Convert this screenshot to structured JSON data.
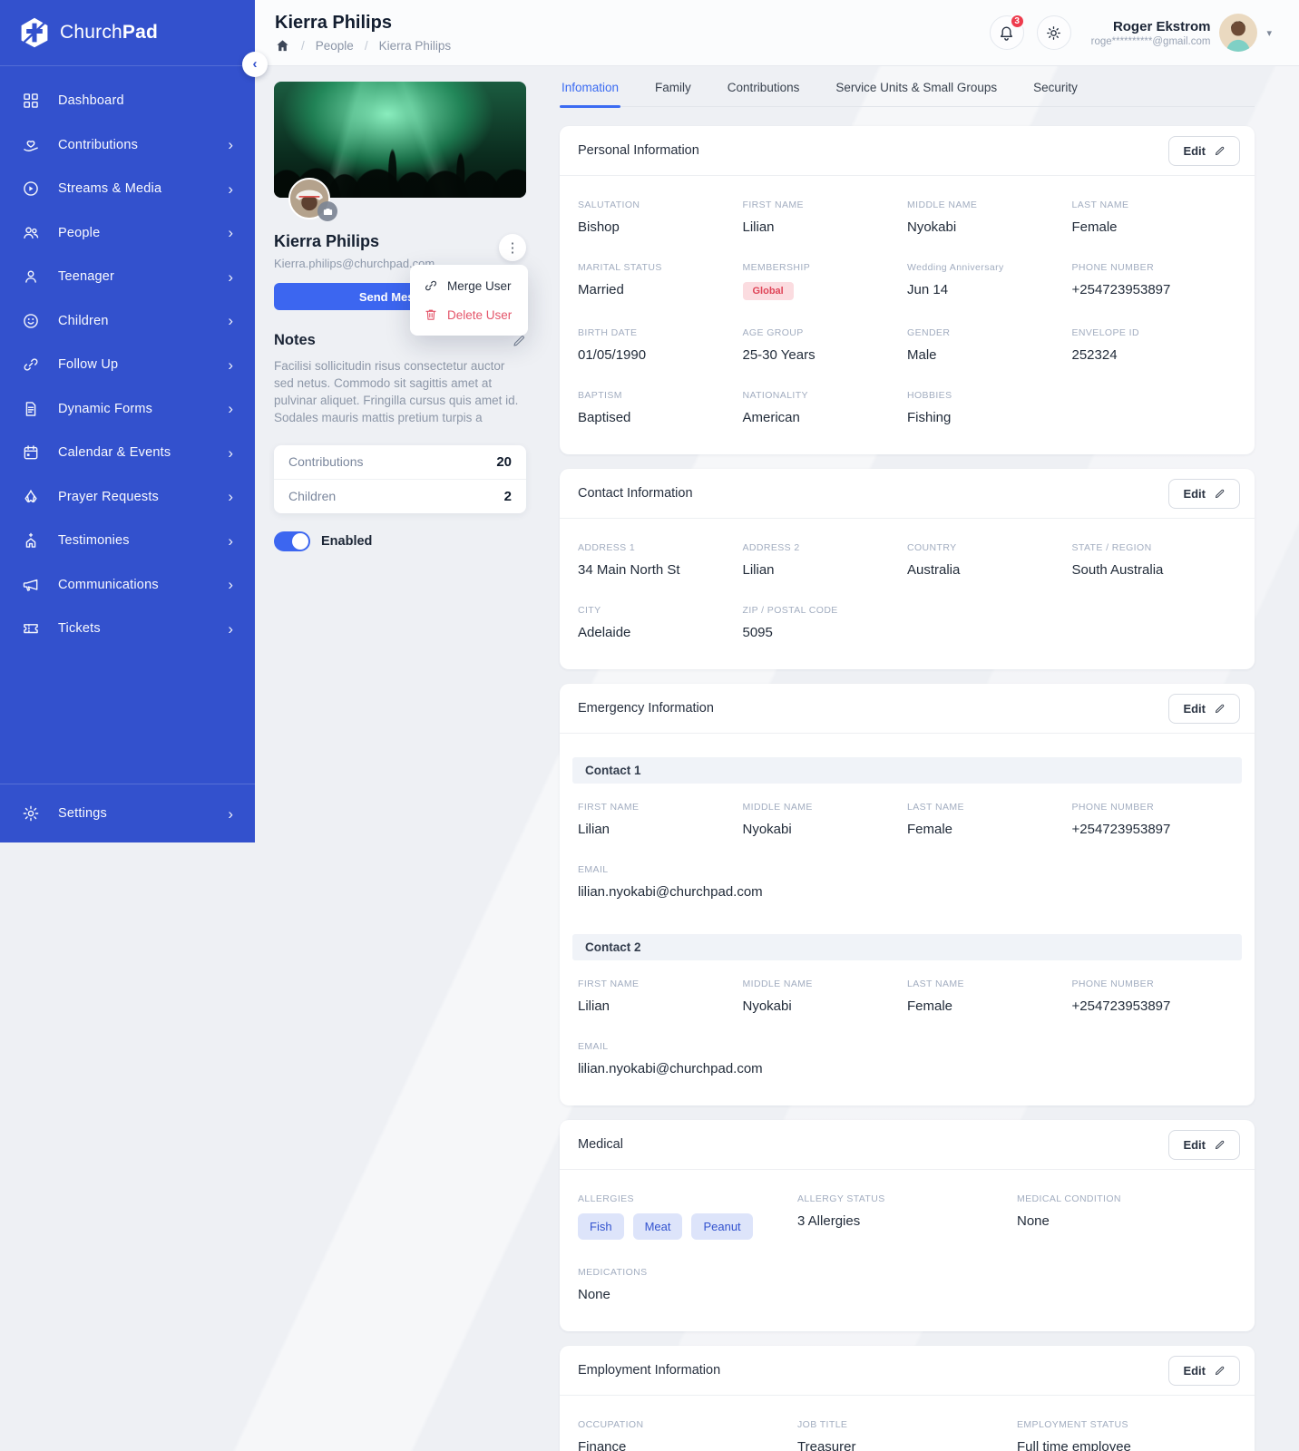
{
  "brand": {
    "name_regular": "Church",
    "name_bold": "Pad"
  },
  "header": {
    "title": "Kierra Philips",
    "breadcrumb": {
      "home_icon": "home-icon",
      "items": [
        "People",
        "Kierra Philips"
      ]
    },
    "notifications_count": "3",
    "user": {
      "name": "Roger Ekstrom",
      "email": "roge**********@gmail.com"
    }
  },
  "sidebar": {
    "items": [
      {
        "label": "Dashboard",
        "icon": "dashboard-icon",
        "chevron": false
      },
      {
        "label": "Contributions",
        "icon": "contributions-icon",
        "chevron": true
      },
      {
        "label": "Streams & Media",
        "icon": "streams-media-icon",
        "chevron": true
      },
      {
        "label": "People",
        "icon": "people-icon",
        "chevron": true
      },
      {
        "label": "Teenager",
        "icon": "teenager-icon",
        "chevron": true
      },
      {
        "label": "Children",
        "icon": "children-icon",
        "chevron": true
      },
      {
        "label": "Follow Up",
        "icon": "follow-up-icon",
        "chevron": true
      },
      {
        "label": "Dynamic Forms",
        "icon": "dynamic-forms-icon",
        "chevron": true
      },
      {
        "label": "Calendar & Events",
        "icon": "calendar-events-icon",
        "chevron": true
      },
      {
        "label": "Prayer Requests",
        "icon": "prayer-requests-icon",
        "chevron": true
      },
      {
        "label": "Testimonies",
        "icon": "testimonies-icon",
        "chevron": true
      },
      {
        "label": "Communications",
        "icon": "communications-icon",
        "chevron": true
      },
      {
        "label": "Tickets",
        "icon": "tickets-icon",
        "chevron": true
      }
    ],
    "settings_label": "Settings"
  },
  "profile": {
    "name": "Kierra Philips",
    "email": "Kierra.philips@churchpad.com",
    "send_message_label": "Send Message",
    "menu": [
      {
        "label": "Merge User",
        "icon": "link-icon",
        "danger": false
      },
      {
        "label": "Delete User",
        "icon": "trash-icon",
        "danger": true
      }
    ],
    "notes_title": "Notes",
    "notes_text": "Facilisi sollicitudin risus consectetur auctor sed netus. Commodo sit sagittis amet at pulvinar aliquet. Fringilla cursus quis amet id. Sodales mauris mattis pretium turpis a",
    "stats": [
      {
        "label": "Contributions",
        "value": "20"
      },
      {
        "label": "Children",
        "value": "2"
      }
    ],
    "toggle_label": "Enabled",
    "toggle_on": true
  },
  "tabs": [
    {
      "label": "Infomation",
      "active": true
    },
    {
      "label": "Family",
      "active": false
    },
    {
      "label": "Contributions",
      "active": false
    },
    {
      "label": "Service Units & Small Groups",
      "active": false
    },
    {
      "label": "Security",
      "active": false
    }
  ],
  "labels": {
    "edit": "Edit"
  },
  "cards": [
    {
      "title": "Personal Information",
      "cols": 4,
      "sections": [
        {
          "rows": [
            [
              {
                "label": "SALUTATION",
                "value": "Bishop"
              },
              {
                "label": "FIRST NAME",
                "value": "Lilian"
              },
              {
                "label": "MIDDLE NAME",
                "value": "Nyokabi"
              },
              {
                "label": "LAST NAME",
                "value": "Female"
              }
            ],
            [
              {
                "label": "MARITAL STATUS",
                "value": "Married"
              },
              {
                "label": "MEMBERSHIP",
                "value": "Global",
                "type": "badge"
              },
              {
                "label": "Wedding Anniversary",
                "value": "Jun 14"
              },
              {
                "label": "PHONE NUMBER",
                "value": "+254723953897"
              }
            ],
            [
              {
                "label": "BIRTH DATE",
                "value": "01/05/1990"
              },
              {
                "label": "AGE GROUP",
                "value": "25-30 Years"
              },
              {
                "label": "GENDER",
                "value": "Male"
              },
              {
                "label": "ENVELOPE ID",
                "value": "252324"
              }
            ],
            [
              {
                "label": "BAPTISM",
                "value": "Baptised"
              },
              {
                "label": "NATIONALITY",
                "value": "American"
              },
              {
                "label": "HOBBIES",
                "value": "Fishing"
              }
            ]
          ]
        }
      ]
    },
    {
      "title": "Contact Information",
      "cols": 4,
      "sections": [
        {
          "rows": [
            [
              {
                "label": "ADDRESS 1",
                "value": "34 Main North St"
              },
              {
                "label": "ADDRESS 2",
                "value": "Lilian"
              },
              {
                "label": "COUNTRY",
                "value": "Australia"
              },
              {
                "label": "STATE / REGION",
                "value": "South Australia"
              }
            ],
            [
              {
                "label": "CITY",
                "value": "Adelaide"
              },
              {
                "label": "ZIP / POSTAL CODE",
                "value": "5095"
              }
            ]
          ]
        }
      ]
    },
    {
      "title": "Emergency Information",
      "cols": 4,
      "sections": [
        {
          "heading": "Contact 1",
          "rows": [
            [
              {
                "label": "FIRST NAME",
                "value": "Lilian"
              },
              {
                "label": "MIDDLE NAME",
                "value": "Nyokabi"
              },
              {
                "label": "LAST NAME",
                "value": "Female"
              },
              {
                "label": "PHONE NUMBER",
                "value": "+254723953897"
              }
            ],
            [
              {
                "label": "EMAIL",
                "value": "lilian.nyokabi@churchpad.com"
              }
            ]
          ]
        },
        {
          "heading": "Contact 2",
          "rows": [
            [
              {
                "label": "FIRST NAME",
                "value": "Lilian"
              },
              {
                "label": "MIDDLE NAME",
                "value": "Nyokabi"
              },
              {
                "label": "LAST NAME",
                "value": "Female"
              },
              {
                "label": "PHONE NUMBER",
                "value": "+254723953897"
              }
            ],
            [
              {
                "label": "EMAIL",
                "value": "lilian.nyokabi@churchpad.com"
              }
            ]
          ]
        }
      ]
    },
    {
      "title": "Medical",
      "cols": 3,
      "sections": [
        {
          "rows": [
            [
              {
                "label": "ALLERGIES",
                "type": "chips",
                "chips": [
                  "Fish",
                  "Meat",
                  "Peanut"
                ]
              },
              {
                "label": "ALLERGY STATUS",
                "value": "3 Allergies"
              },
              {
                "label": "MEDICAL CONDITION",
                "value": "None"
              }
            ],
            [
              {
                "label": "MEDICATIONS",
                "value": "None"
              }
            ]
          ]
        }
      ]
    },
    {
      "title": "Employment Information",
      "cols": 3,
      "sections": [
        {
          "rows": [
            [
              {
                "label": "OCCUPATION",
                "value": "Finance"
              },
              {
                "label": "JOB TITLE",
                "value": "Treasurer"
              },
              {
                "label": "EMPLOYMENT STATUS",
                "value": "Full time employee"
              }
            ]
          ]
        }
      ]
    }
  ],
  "colors": {
    "sidebar": "#3351cd",
    "accent": "#3c66f0",
    "tab_active": "#3b6bf2",
    "danger": "#e4556a",
    "badge_bg": "#fbdce0",
    "badge_text": "#df4558",
    "chip_bg": "#dde4fa",
    "chip_text": "#3353cf",
    "notification_badge": "#ee3b4d",
    "page_bg": "#eef0f4"
  }
}
